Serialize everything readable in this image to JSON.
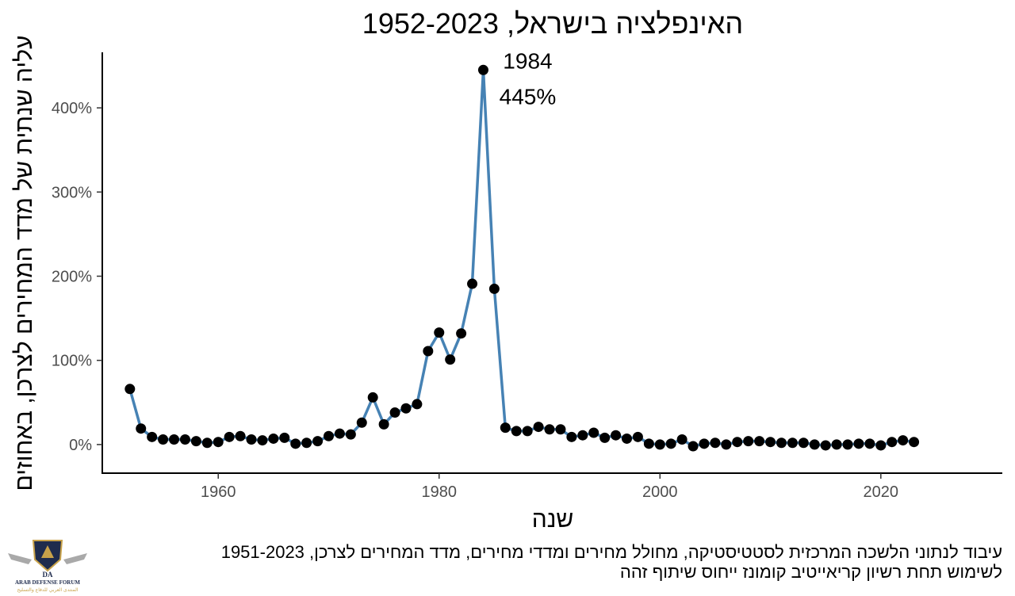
{
  "chart_data": {
    "type": "line",
    "title": "האינפלציה בישראל, 1952-2023",
    "xlabel": "שנה",
    "ylabel": "עליה שנתית של מדד המחירים לצרכן, באחוזים",
    "x_ticks": [
      1960,
      1980,
      2000,
      2020
    ],
    "x_tick_labels": [
      "1960",
      "1980",
      "2000",
      "2020"
    ],
    "y_ticks": [
      0,
      100,
      200,
      300,
      400
    ],
    "y_tick_labels": [
      "0%",
      "100%",
      "200%",
      "300%",
      "400%"
    ],
    "xlim": [
      1949.5,
      2031
    ],
    "ylim": [
      -34,
      466
    ],
    "grid": false,
    "legend": "none",
    "line_color": "#4682B4",
    "point_color": "#000000",
    "annotations": [
      {
        "text": "1984",
        "x": 1984,
        "y": 445,
        "anchor": "above-right"
      },
      {
        "text": "445%",
        "x": 1984,
        "y": 445,
        "anchor": "below-right"
      }
    ],
    "series": [
      {
        "x": [
          1952,
          1953,
          1954,
          1955,
          1956,
          1957,
          1958,
          1959,
          1960,
          1961,
          1962,
          1963,
          1964,
          1965,
          1966,
          1967,
          1968,
          1969,
          1970,
          1971,
          1972,
          1973,
          1974,
          1975,
          1976,
          1977,
          1978,
          1979,
          1980,
          1981,
          1982,
          1983,
          1984,
          1985,
          1986,
          1987,
          1988,
          1989,
          1990,
          1991,
          1992,
          1993,
          1994,
          1995,
          1996,
          1997,
          1998,
          1999,
          2000,
          2001,
          2002,
          2003,
          2004,
          2005,
          2006,
          2007,
          2008,
          2009,
          2010,
          2011,
          2012,
          2013,
          2014,
          2015,
          2016,
          2017,
          2018,
          2019,
          2020,
          2021,
          2022,
          2023
        ],
        "values": [
          66,
          19,
          9,
          6,
          6,
          6,
          4,
          2,
          3,
          9,
          10,
          6,
          5,
          7,
          8,
          1,
          2,
          4,
          10,
          13,
          12,
          26,
          56,
          24,
          38,
          43,
          48,
          111,
          133,
          101,
          132,
          191,
          445,
          185,
          20,
          16,
          16,
          21,
          18,
          18,
          9,
          11,
          14,
          8,
          11,
          7,
          9,
          1,
          0,
          1,
          6,
          -2,
          1,
          2,
          0,
          3,
          4,
          4,
          3,
          2,
          2,
          2,
          0,
          -1,
          0,
          0,
          1,
          1,
          -1,
          3,
          5,
          3
        ]
      }
    ]
  },
  "caption": {
    "line1": "עיבוד לנתוני הלשכה המרכזית לסטטיסטיקה, מחולל מחירים ומדדי מחירים, מדד המחירים לצרכן, 1951-2023",
    "line2": "לשימוש תחת רשיון קריאייטיב קומונז ייחוס שיתוף זהה"
  },
  "logo": {
    "text1": "DA",
    "text2": "ARAB DEFENSE FORUM",
    "text3": "المنتدى العربي للدفاع والتسليح"
  }
}
